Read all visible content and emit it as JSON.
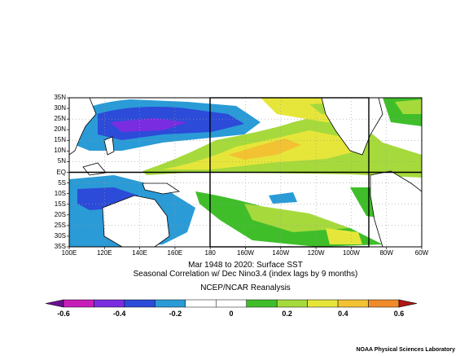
{
  "map": {
    "lat_labels": [
      "35N",
      "30N",
      "25N",
      "20N",
      "15N",
      "10N",
      "5N",
      "EQ",
      "5S",
      "10S",
      "15S",
      "20S",
      "25S",
      "30S",
      "35S"
    ],
    "lon_labels": [
      "100E",
      "120E",
      "140E",
      "160E",
      "180",
      "160W",
      "140W",
      "120W",
      "100W",
      "80W",
      "60W"
    ],
    "extent": {
      "lon_min": 100,
      "lon_max": 300,
      "lat_min": -35,
      "lat_max": 35
    },
    "highlight_box": {
      "lon_min": 180,
      "lon_max": 270,
      "lat_min": -35,
      "lat_max": 35,
      "equator_line": 0
    }
  },
  "captions": {
    "line1": "Mar 1948 to 2020: Surface SST",
    "line2": "Seasonal Correlation w/ Dec Nino3.4 (index lags by 9 months)",
    "line3": "NCEP/NCAR Reanalysis"
  },
  "colorbar": {
    "labels": [
      "-0.6",
      "-0.4",
      "-0.2",
      "0",
      "0.2",
      "0.4",
      "0.6"
    ],
    "colors": [
      "#8c1cab",
      "#c81eb8",
      "#7a2de0",
      "#2c4bd9",
      "#2a9bd6",
      "#ffffff",
      "#ffffff",
      "#3fbe2a",
      "#a6da3c",
      "#e6e63a",
      "#f2c233",
      "#f08a2a",
      "#d8281e"
    ],
    "min": -0.6,
    "max": 0.6
  },
  "footer": "NOAA Physical Sciences Laboratory"
}
